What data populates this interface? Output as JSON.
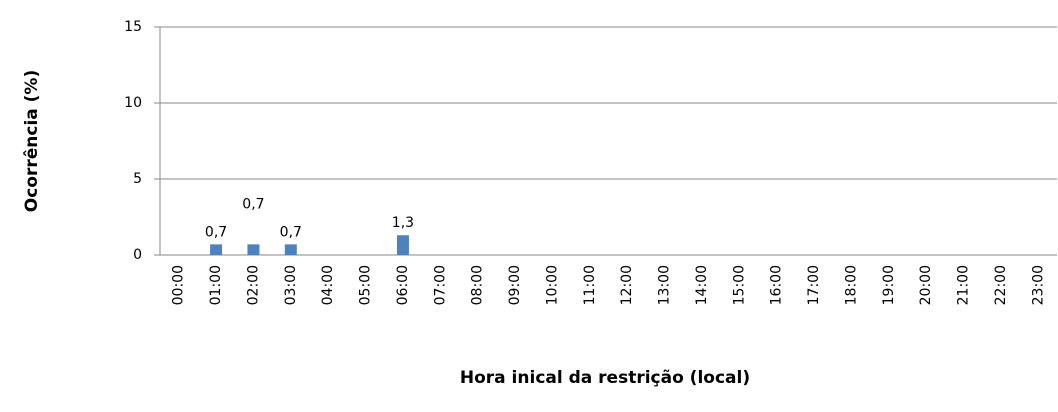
{
  "chart_data": {
    "type": "bar",
    "x_label": "Hora inical da restrição (local)",
    "y_label": "Ocorrência (%)",
    "categories": [
      "00:00",
      "01:00",
      "02:00",
      "03:00",
      "04:00",
      "05:00",
      "06:00",
      "07:00",
      "08:00",
      "09:00",
      "10:00",
      "11:00",
      "12:00",
      "13:00",
      "14:00",
      "15:00",
      "16:00",
      "17:00",
      "18:00",
      "19:00",
      "20:00",
      "21:00",
      "22:00",
      "23:00"
    ],
    "values": [
      null,
      0.7,
      0.7,
      0.7,
      null,
      null,
      1.3,
      null,
      null,
      null,
      null,
      null,
      null,
      null,
      null,
      null,
      null,
      null,
      null,
      null,
      null,
      null,
      null,
      null
    ],
    "value_labels": [
      null,
      "0,7",
      "0,7",
      "0,7",
      null,
      null,
      "1,3",
      null,
      null,
      null,
      null,
      null,
      null,
      null,
      null,
      null,
      null,
      null,
      null,
      null,
      null,
      null,
      null,
      null
    ],
    "color": "#4f81bd",
    "ylim": [
      0,
      15
    ],
    "yticks": [
      0,
      5,
      10,
      15
    ],
    "grid": true
  }
}
